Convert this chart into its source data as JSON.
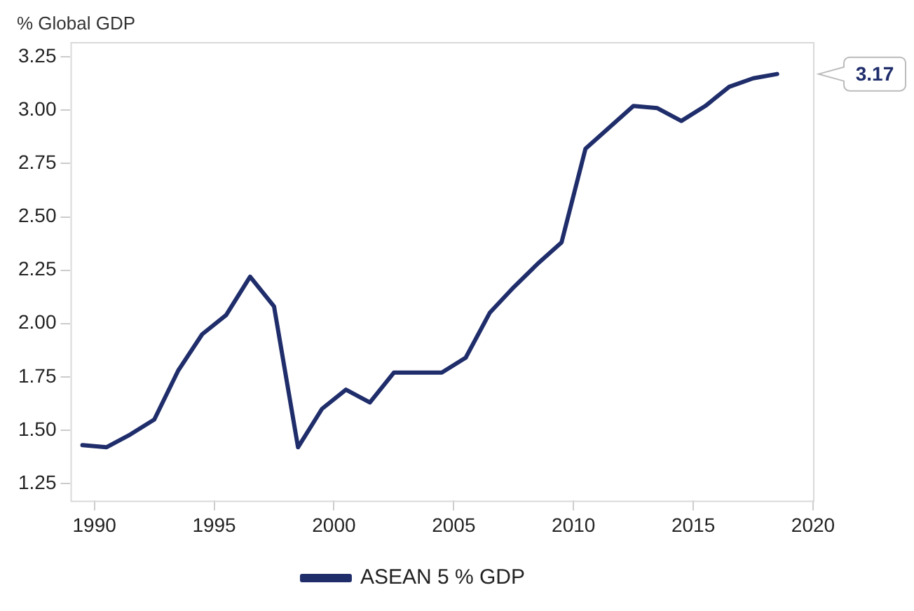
{
  "chart_data": {
    "type": "line",
    "ylabel": "% Global GDP",
    "x": [
      1989.5,
      1990.5,
      1991.5,
      1992.5,
      1993.5,
      1994.5,
      1995.5,
      1996.5,
      1997.5,
      1998.5,
      1999.5,
      2000.5,
      2001.5,
      2002.5,
      2003.5,
      2004.5,
      2005.5,
      2006.5,
      2007.5,
      2008.5,
      2009.5,
      2010.5,
      2011.5,
      2012.5,
      2013.5,
      2014.5,
      2015.5,
      2016.5,
      2017.5,
      2018.5
    ],
    "series": [
      {
        "name": "ASEAN 5 % GDP",
        "color": "#1f2d6b",
        "values": [
          1.43,
          1.42,
          1.48,
          1.55,
          1.78,
          1.95,
          2.04,
          2.22,
          2.08,
          1.42,
          1.6,
          1.69,
          1.63,
          1.77,
          1.77,
          1.77,
          1.84,
          2.05,
          2.17,
          2.28,
          2.38,
          2.82,
          2.92,
          3.02,
          3.01,
          2.95,
          3.02,
          3.11,
          3.15,
          3.17
        ]
      }
    ],
    "xlim": [
      1989,
      2020
    ],
    "xticks": [
      1990,
      1995,
      2000,
      2005,
      2010,
      2015,
      2020
    ],
    "ylim": [
      1.17,
      3.32
    ],
    "yticks": [
      1.25,
      {
        "value": 1.5,
        "label": "1.50"
      },
      1.75,
      {
        "value": 2,
        "label": "2.00"
      },
      2.25,
      {
        "value": 2.5,
        "label": "2.50"
      },
      2.75,
      {
        "value": 3,
        "label": "3.00"
      },
      3.25
    ],
    "annotations": [
      "3.17"
    ],
    "grid": false,
    "legend": "bottom",
    "marker": "none",
    "line_style": "solid"
  }
}
